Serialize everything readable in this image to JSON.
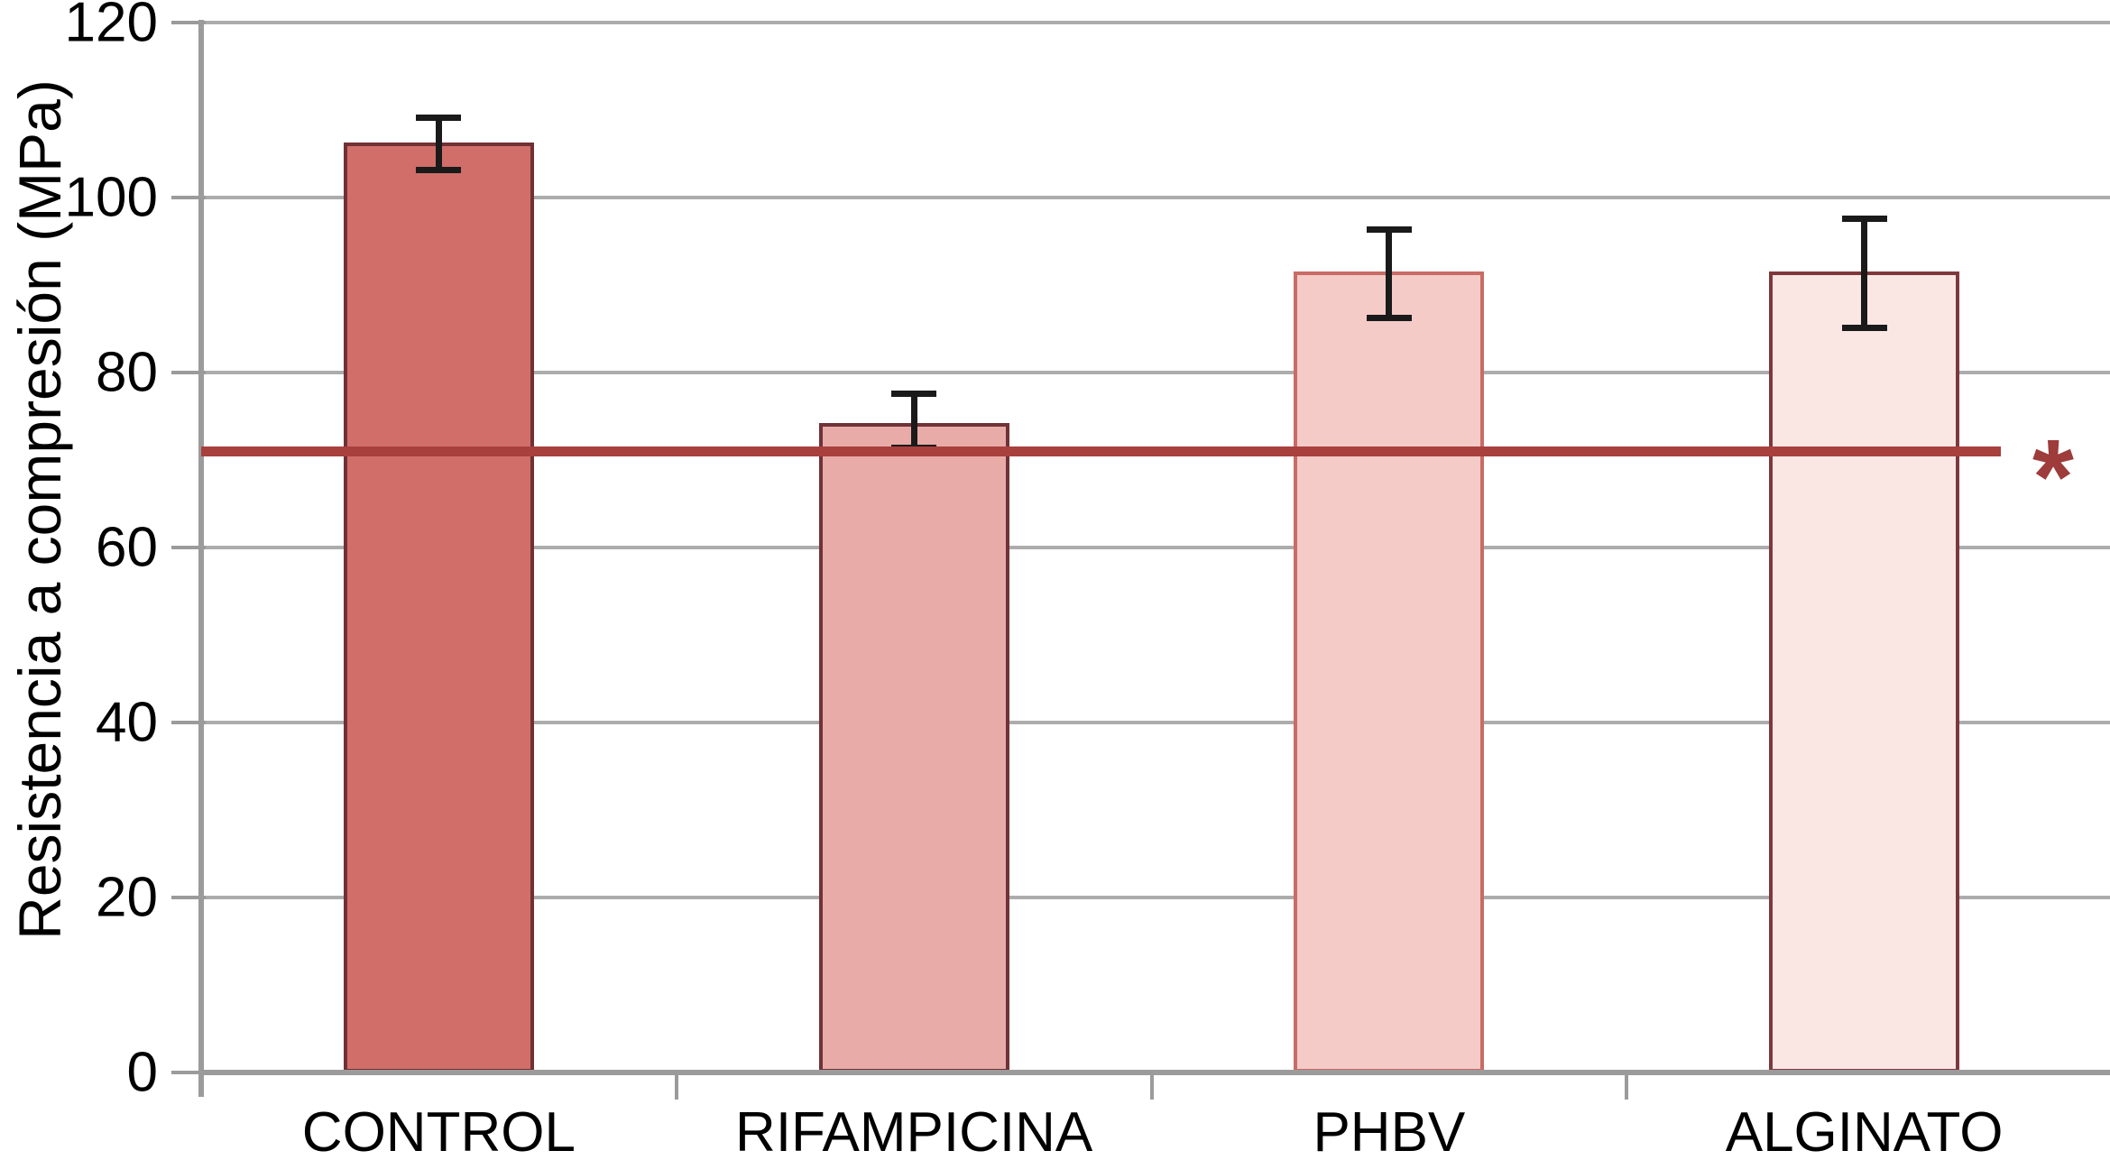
{
  "page": {
    "background": "#ffffff"
  },
  "chart_data": {
    "type": "bar",
    "title": "",
    "ylabel": "Resistencia a compresión (MPa)",
    "xlabel": "",
    "categories": [
      "CONTROL",
      "RIFAMPICINA",
      "PHBV",
      "ALGINATO"
    ],
    "values": [
      106.3,
      74.2,
      91.5,
      91.5
    ],
    "errors_plus": [
      2.9,
      3.4,
      4.9,
      6.1
    ],
    "errors_minus": [
      3.2,
      2.9,
      5.3,
      6.4
    ],
    "ylim": [
      0,
      120
    ],
    "yticks": [
      0,
      20,
      40,
      60,
      80,
      100,
      120
    ],
    "grid": "on",
    "legend": "none",
    "bar_fill_colors": [
      "#D16E69",
      "#E9ABA8",
      "#F5CBC7",
      "#FAE7E4"
    ],
    "bar_border_colors": [
      "#703134",
      "#6F3337",
      "#C96B66",
      "#7E383C"
    ],
    "error_bar_color": "#1A1A1A",
    "axis_color": "#9B9B9B",
    "grid_color": "#ACACAC",
    "text_color": "#000000",
    "reference_line": {
      "value": 71,
      "color": "#A8403E",
      "extent_fraction": 0.947,
      "annotation": "*",
      "annotation_color": "#9E3B3B"
    }
  }
}
